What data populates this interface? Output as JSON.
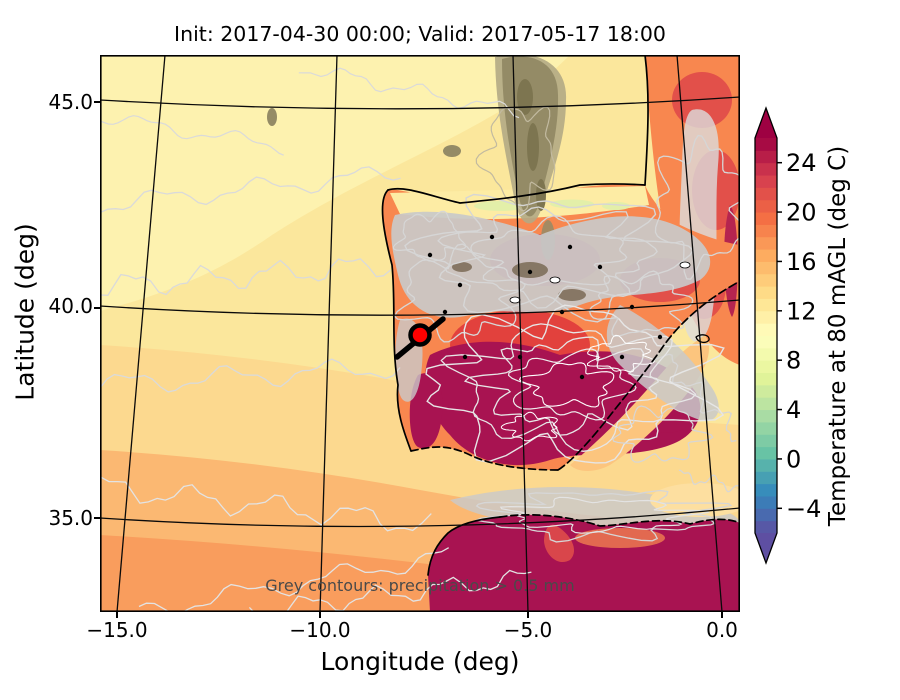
{
  "figure": {
    "title": "Init: 2017-04-30 00:00; Valid: 2017-05-17 18:00",
    "xlabel": "Longitude (deg)",
    "ylabel": "Latitude (deg)",
    "annotation": "Grey contours: precipitation > 0.5 mm"
  },
  "axes": {
    "x_ticks": [
      "−15.0",
      "−10.0",
      "−5.0",
      "0.0"
    ],
    "y_ticks": [
      "45.0",
      "40.0",
      "35.0"
    ]
  },
  "colorbar": {
    "label": "Temperature at 80 mAGL (deg C)",
    "tick_labels": [
      "24",
      "20",
      "16",
      "12",
      "8",
      "4",
      "0",
      "−4"
    ],
    "tick_values": [
      24,
      20,
      16,
      12,
      8,
      4,
      0,
      -4
    ],
    "vmin": -6,
    "vmax": 26,
    "band_step": 1,
    "extend": "both",
    "colormap": "Spectral_r",
    "spectral_anchors": [
      "#9e0142",
      "#d53e4f",
      "#f46d43",
      "#fdae61",
      "#fee08b",
      "#ffffbf",
      "#e6f598",
      "#abdda4",
      "#66c2a5",
      "#3288bd",
      "#5e4fa2"
    ]
  },
  "marker": {
    "name": "site-marker",
    "approx_lon": -7.8,
    "approx_lat": 39.4,
    "fill_color": "#ff0000",
    "ring_color": "#000000"
  },
  "map_colors": {
    "ocean_pale": "#fdf2af",
    "ocean_yellow": "#fbe79c",
    "ocean_orange": "#fbb872",
    "land_orange": "#f8874f",
    "hot_red": "#e2504a",
    "hot_crimson": "#a81351",
    "precip_grey": "#c9c9c9",
    "cloud_olive": "#948b66",
    "contour_grey": "#d6d6d6",
    "graticule_black": "#0a0a0a"
  }
}
